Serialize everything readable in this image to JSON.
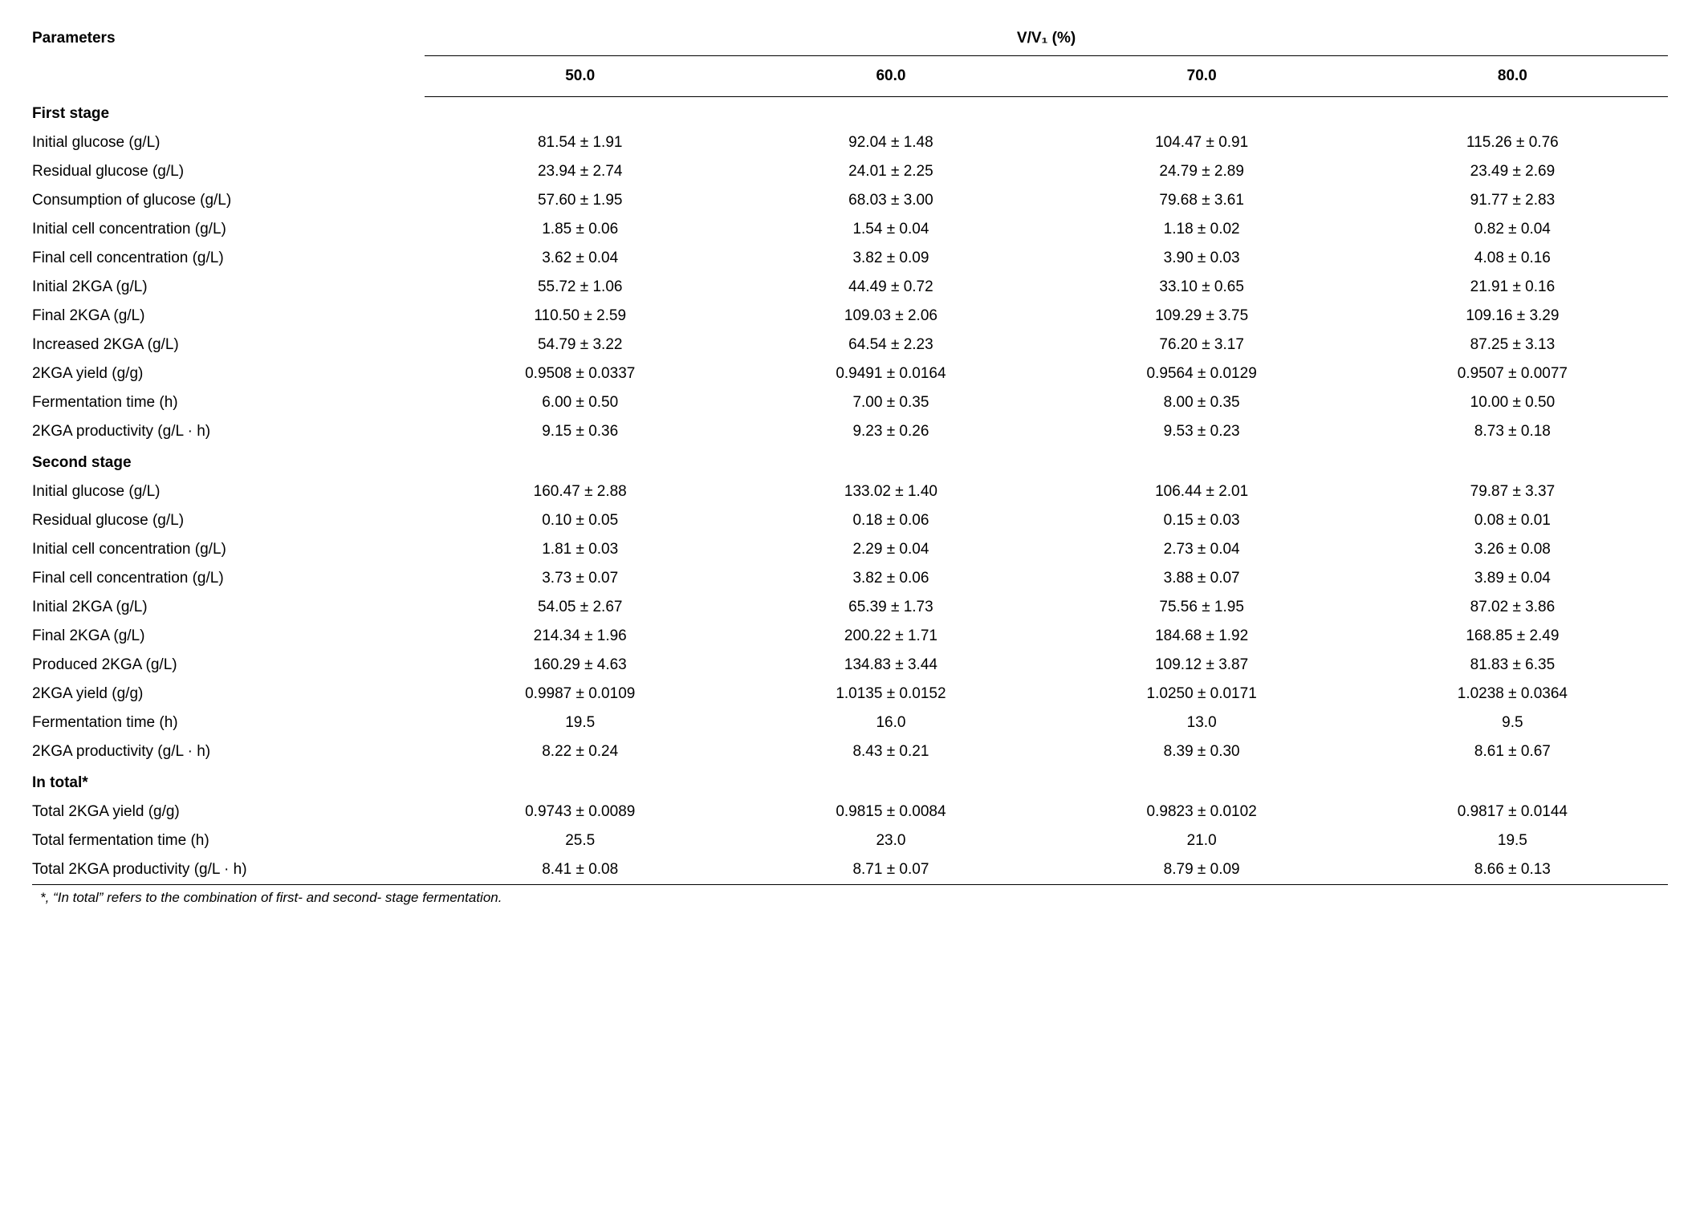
{
  "header": {
    "parameters_label": "Parameters",
    "group_label": "V/V₁ (%)",
    "columns": [
      "50.0",
      "60.0",
      "70.0",
      "80.0"
    ]
  },
  "sections": [
    {
      "title": "First stage",
      "rows": [
        {
          "param": "Initial glucose (g/L)",
          "vals": [
            "81.54 ± 1.91",
            "92.04 ± 1.48",
            "104.47 ± 0.91",
            "115.26 ± 0.76"
          ]
        },
        {
          "param": "Residual glucose (g/L)",
          "vals": [
            "23.94 ± 2.74",
            "24.01 ± 2.25",
            "24.79 ± 2.89",
            "23.49 ± 2.69"
          ]
        },
        {
          "param": "Consumption of glucose (g/L)",
          "vals": [
            "57.60 ± 1.95",
            "68.03 ± 3.00",
            "79.68 ± 3.61",
            "91.77 ± 2.83"
          ]
        },
        {
          "param": "Initial cell concentration (g/L)",
          "vals": [
            "1.85 ± 0.06",
            "1.54 ± 0.04",
            "1.18 ± 0.02",
            "0.82 ± 0.04"
          ]
        },
        {
          "param": "Final cell concentration (g/L)",
          "vals": [
            "3.62 ± 0.04",
            "3.82 ± 0.09",
            "3.90 ± 0.03",
            "4.08 ± 0.16"
          ]
        },
        {
          "param": "Initial 2KGA (g/L)",
          "vals": [
            "55.72 ± 1.06",
            "44.49 ± 0.72",
            "33.10 ± 0.65",
            "21.91 ± 0.16"
          ]
        },
        {
          "param": "Final 2KGA (g/L)",
          "vals": [
            "110.50 ± 2.59",
            "109.03 ± 2.06",
            "109.29 ± 3.75",
            "109.16 ± 3.29"
          ]
        },
        {
          "param": "Increased 2KGA (g/L)",
          "vals": [
            "54.79 ± 3.22",
            "64.54 ± 2.23",
            "76.20 ± 3.17",
            "87.25 ± 3.13"
          ]
        },
        {
          "param": "2KGA yield (g/g)",
          "vals": [
            "0.9508 ± 0.0337",
            "0.9491 ± 0.0164",
            "0.9564 ± 0.0129",
            "0.9507 ± 0.0077"
          ]
        },
        {
          "param": "Fermentation time (h)",
          "vals": [
            "6.00 ± 0.50",
            "7.00 ± 0.35",
            "8.00 ± 0.35",
            "10.00 ± 0.50"
          ]
        },
        {
          "param": "2KGA productivity (g/L · h)",
          "vals": [
            "9.15 ± 0.36",
            "9.23 ± 0.26",
            "9.53 ± 0.23",
            "8.73 ± 0.18"
          ]
        }
      ]
    },
    {
      "title": "Second stage",
      "rows": [
        {
          "param": "Initial glucose (g/L)",
          "vals": [
            "160.47 ± 2.88",
            "133.02 ± 1.40",
            "106.44 ± 2.01",
            "79.87 ± 3.37"
          ]
        },
        {
          "param": "Residual glucose (g/L)",
          "vals": [
            "0.10 ± 0.05",
            "0.18 ± 0.06",
            "0.15 ± 0.03",
            "0.08 ± 0.01"
          ]
        },
        {
          "param": "Initial cell concentration (g/L)",
          "vals": [
            "1.81 ± 0.03",
            "2.29 ± 0.04",
            "2.73 ± 0.04",
            "3.26 ± 0.08"
          ]
        },
        {
          "param": "Final cell concentration (g/L)",
          "vals": [
            "3.73 ± 0.07",
            "3.82 ± 0.06",
            "3.88 ± 0.07",
            "3.89 ± 0.04"
          ]
        },
        {
          "param": "Initial 2KGA (g/L)",
          "vals": [
            "54.05 ± 2.67",
            "65.39 ± 1.73",
            "75.56 ± 1.95",
            "87.02 ± 3.86"
          ]
        },
        {
          "param": "Final 2KGA (g/L)",
          "vals": [
            "214.34 ± 1.96",
            "200.22 ± 1.71",
            "184.68 ± 1.92",
            "168.85 ± 2.49"
          ]
        },
        {
          "param": "Produced 2KGA (g/L)",
          "vals": [
            "160.29 ± 4.63",
            "134.83 ± 3.44",
            "109.12 ± 3.87",
            "81.83 ± 6.35"
          ]
        },
        {
          "param": "2KGA yield (g/g)",
          "vals": [
            "0.9987 ± 0.0109",
            "1.0135 ± 0.0152",
            "1.0250 ± 0.0171",
            "1.0238 ± 0.0364"
          ]
        },
        {
          "param": "Fermentation time (h)",
          "vals": [
            "19.5",
            "16.0",
            "13.0",
            "9.5"
          ]
        },
        {
          "param": "2KGA productivity (g/L · h)",
          "vals": [
            "8.22 ± 0.24",
            "8.43 ± 0.21",
            "8.39 ± 0.30",
            "8.61 ± 0.67"
          ]
        }
      ]
    },
    {
      "title": "In total*",
      "rows": [
        {
          "param": "Total 2KGA yield (g/g)",
          "vals": [
            "0.9743 ± 0.0089",
            "0.9815 ± 0.0084",
            "0.9823 ± 0.0102",
            "0.9817 ± 0.0144"
          ]
        },
        {
          "param": "Total fermentation time (h)",
          "vals": [
            "25.5",
            "23.0",
            "21.0",
            "19.5"
          ]
        },
        {
          "param": "Total 2KGA productivity (g/L · h)",
          "vals": [
            "8.41 ± 0.08",
            "8.71 ± 0.07",
            "8.79 ± 0.09",
            "8.66 ± 0.13"
          ]
        }
      ]
    }
  ],
  "footnote": "*, “In total” refers to the combination of first- and second- stage fermentation.",
  "style": {
    "background_color": "#ffffff",
    "text_color": "#000000",
    "border_color": "#000000",
    "body_fontsize": 19,
    "footnote_fontsize": 17,
    "col_widths_pct": [
      24,
      19,
      19,
      19,
      19
    ]
  }
}
